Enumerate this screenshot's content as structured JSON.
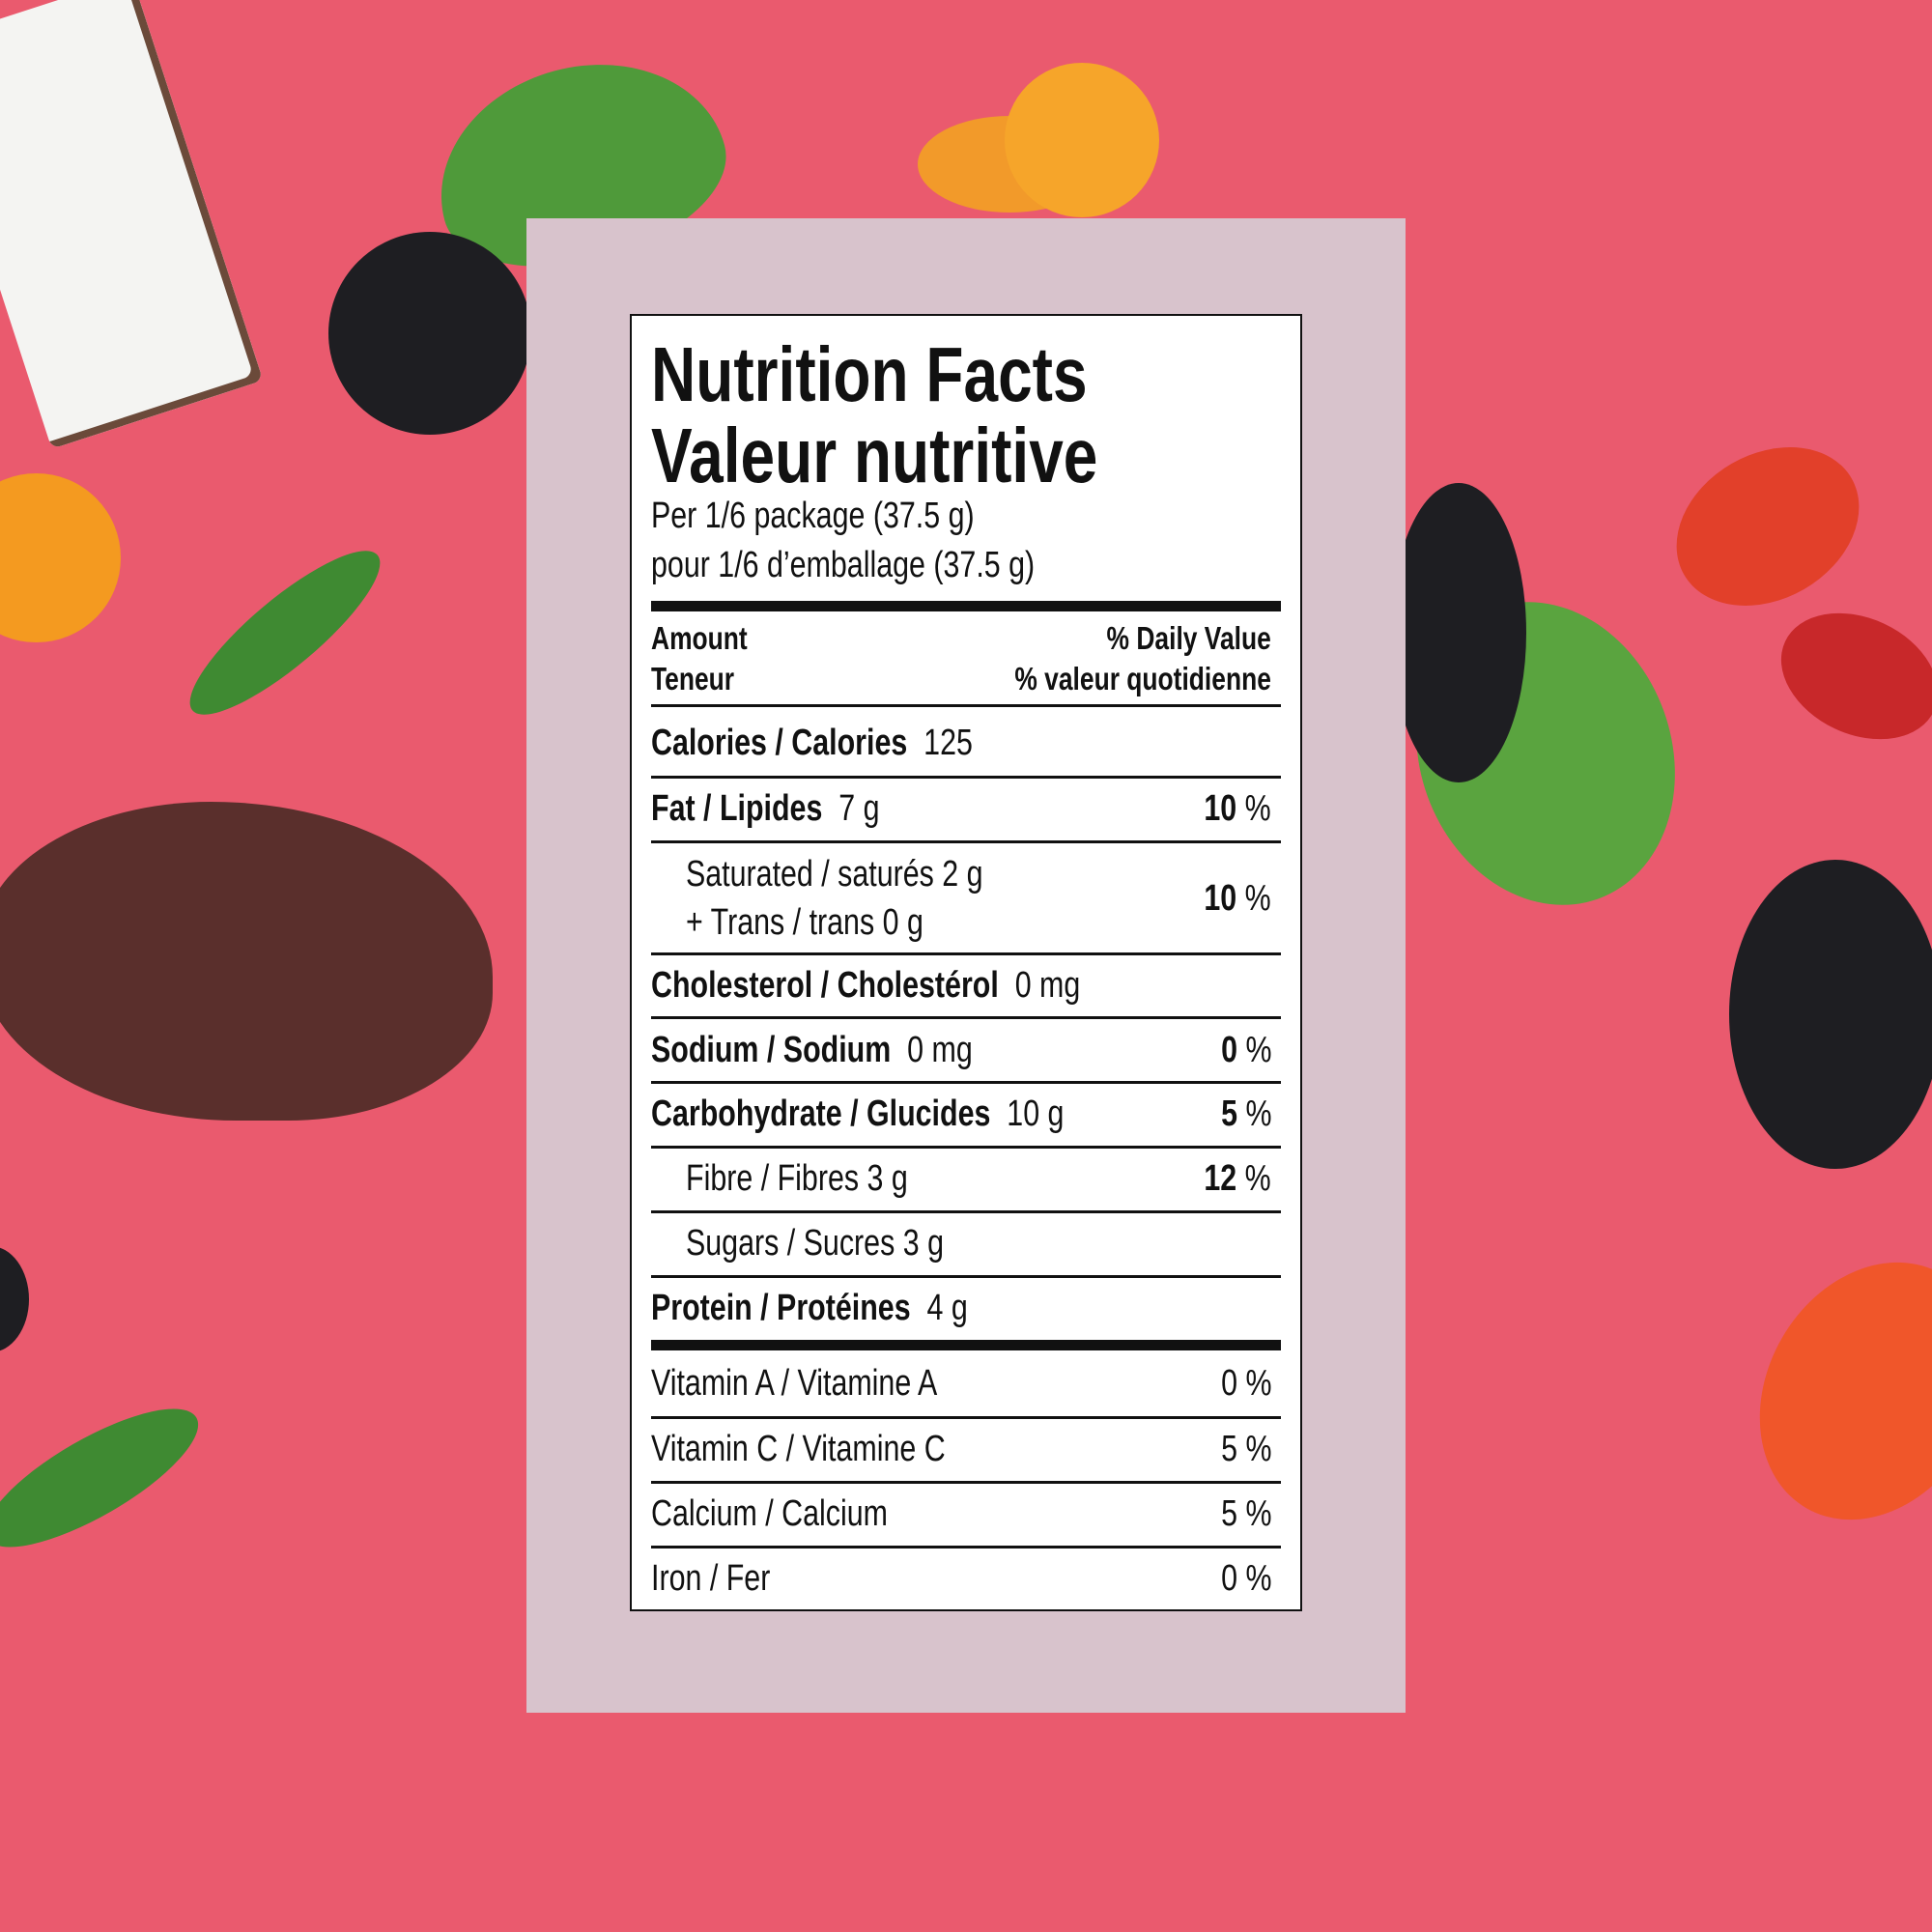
{
  "colors": {
    "background": "#EA5A6E",
    "panel": "#D8C3CC",
    "label": "#FFFFFF",
    "text": "#111111"
  },
  "background_items": [
    "coconut",
    "mulberry",
    "physalis",
    "leaf",
    "cocoa-nibs",
    "goji-berry"
  ],
  "label": {
    "title_en": "Nutrition Facts",
    "title_fr": "Valeur nutritive",
    "serving_en": "Per 1/6 package (37.5 g)",
    "serving_fr": "pour 1/6 d’emballage (37.5 g)",
    "header": {
      "amount_en": "Amount",
      "amount_fr": "Teneur",
      "dv_en": "% Daily Value",
      "dv_fr": "% valeur quotidienne"
    },
    "calories": {
      "name": "Calories / Calories",
      "value": "125"
    },
    "fat": {
      "name": "Fat / Lipides",
      "value": "7 g",
      "dv": "10",
      "unit": "%"
    },
    "saturated": {
      "name": "Saturated / saturés 2 g",
      "trans": "+ Trans / trans 0 g",
      "dv": "10",
      "unit": "%"
    },
    "cholesterol": {
      "name": "Cholesterol / Cholestérol",
      "value": "0 mg"
    },
    "sodium": {
      "name": "Sodium / Sodium",
      "value": "0 mg",
      "dv": "0",
      "unit": "%"
    },
    "carbohydrate": {
      "name": "Carbohydrate / Glucides",
      "value": "10 g",
      "dv": "5",
      "unit": "%"
    },
    "fibre": {
      "name": "Fibre / Fibres 3 g",
      "dv": "12",
      "unit": "%"
    },
    "sugars": {
      "name": "Sugars / Sucres 3 g"
    },
    "protein": {
      "name": "Protein / Protéines",
      "value": "4 g"
    },
    "vitamins": [
      {
        "name": "Vitamin A / Vitamine A",
        "dv": "0 %"
      },
      {
        "name": "Vitamin C / Vitamine C",
        "dv": "5 %"
      },
      {
        "name": "Calcium / Calcium",
        "dv": "5 %"
      },
      {
        "name": "Iron / Fer",
        "dv": "0 %"
      }
    ]
  }
}
